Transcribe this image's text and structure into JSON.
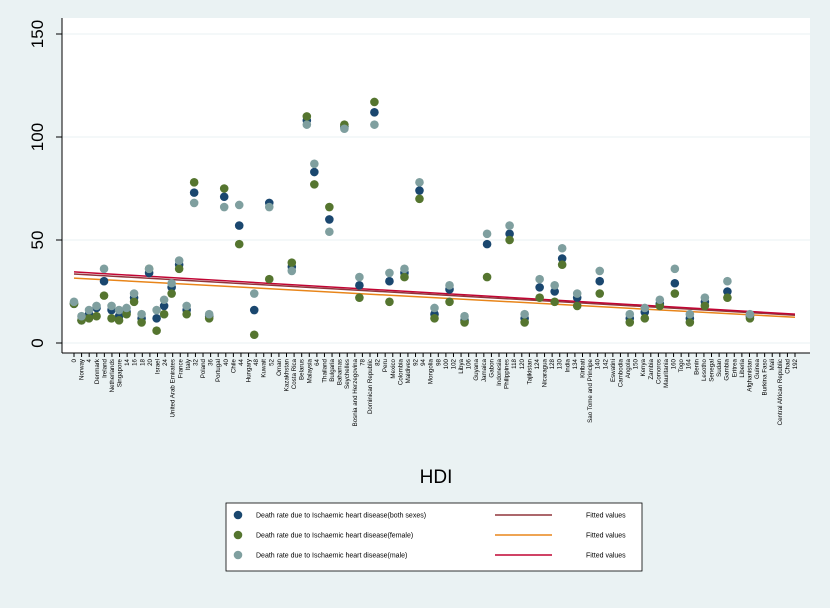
{
  "chart_data": {
    "type": "scatter",
    "xlabel": "HDI",
    "ylabel": "",
    "ylim": [
      0,
      150
    ],
    "y_ticks": [
      0,
      50,
      100,
      150
    ],
    "x_tick_labels": [
      "0",
      "Norway",
      "4",
      "Denmark",
      "Ireland",
      "Netherlands",
      "Singapore",
      "14",
      "16",
      "18",
      "20",
      "Israel",
      "24",
      "United Arab Emirates",
      "France",
      "Italy",
      "32",
      "Poland",
      "36",
      "Portugal",
      "40",
      "Chile",
      "44",
      "Hungary",
      "48",
      "Kuwait",
      "52",
      "Oman",
      "Kazakhstan",
      "Costa Rica",
      "Belarus",
      "Malaysia",
      "64",
      "Thailand",
      "Bulgaria",
      "Bahamas",
      "Seychelles",
      "Bosnia and Herzegovina",
      "78",
      "Dominican Republic",
      "82",
      "Peru",
      "Mexico",
      "Colombia",
      "Maldives",
      "92",
      "94",
      "Mongolia",
      "98",
      "100",
      "102",
      "Libya",
      "106",
      "Guyana",
      "Jamaica",
      "Gabon",
      "Indonesia",
      "Philippines",
      "118",
      "120",
      "Tajikistan",
      "124",
      "Nicaragua",
      "128",
      "130",
      "India",
      "134",
      "Kiribati",
      "Sao Tome and Principe",
      "140",
      "142",
      "Eswatini",
      "Cambodia",
      "Angola",
      "150",
      "Kenya",
      "Zambia",
      "Comoros",
      "Mauritania",
      "160",
      "Togo",
      "164",
      "Benin",
      "Lesotho",
      "Senegal",
      "Sudan",
      "Gambia",
      "Eritrea",
      "Liberia",
      "Afghanistan",
      "Guinea",
      "Burkina Faso",
      "Mali",
      "Central African Republic",
      "Chad",
      "192"
    ],
    "series": [
      {
        "name": "Death rate due to Ischaemic heart disease(both sexes)",
        "color": "#1a476f",
        "x": [
          0,
          2,
          4,
          6,
          8,
          10,
          12,
          14,
          16,
          18,
          20,
          22,
          24,
          26,
          28,
          30,
          32,
          36,
          40,
          44,
          48,
          52,
          58,
          62,
          64,
          68,
          72,
          76,
          80,
          84,
          88,
          92,
          96,
          100,
          104,
          110,
          116,
          120,
          124,
          128,
          130,
          134,
          140,
          148,
          152,
          156,
          160,
          164,
          168,
          174,
          180
        ],
        "values": [
          19,
          11,
          14,
          17,
          30,
          16,
          13,
          15,
          22,
          12,
          34,
          12,
          18,
          27,
          38,
          16,
          73,
          13,
          71,
          57,
          16,
          68,
          37,
          108,
          83,
          60,
          105,
          28,
          112,
          30,
          34,
          74,
          14,
          26,
          11,
          48,
          53,
          12,
          27,
          25,
          41,
          22,
          30,
          12,
          15,
          19,
          29,
          12,
          20,
          25,
          13
        ]
      },
      {
        "name": "Death rate due to Ischaemic heart disease(female)",
        "color": "#55752f",
        "x": [
          0,
          2,
          4,
          6,
          8,
          10,
          12,
          14,
          16,
          18,
          20,
          22,
          24,
          26,
          28,
          30,
          32,
          36,
          40,
          44,
          48,
          52,
          58,
          62,
          64,
          68,
          72,
          76,
          80,
          84,
          88,
          92,
          96,
          100,
          104,
          110,
          116,
          120,
          124,
          128,
          130,
          134,
          140,
          148,
          152,
          156,
          160,
          164,
          168,
          174,
          180
        ],
        "values": [
          19,
          11,
          12,
          13,
          23,
          12,
          11,
          14,
          20,
          10,
          36,
          6,
          14,
          24,
          36,
          14,
          78,
          12,
          75,
          48,
          4,
          31,
          39,
          110,
          77,
          66,
          106,
          22,
          117,
          20,
          32,
          70,
          12,
          20,
          10,
          32,
          50,
          10,
          22,
          20,
          38,
          18,
          24,
          10,
          12,
          18,
          24,
          10,
          18,
          22,
          12
        ]
      },
      {
        "name": "Death rate due to Ischaemic heart disease(male)",
        "color": "#7f9f9f",
        "x": [
          0,
          2,
          4,
          6,
          8,
          10,
          12,
          14,
          16,
          18,
          20,
          22,
          24,
          26,
          28,
          30,
          32,
          36,
          40,
          44,
          48,
          52,
          58,
          62,
          64,
          68,
          72,
          76,
          80,
          84,
          88,
          92,
          96,
          100,
          104,
          110,
          116,
          120,
          124,
          128,
          130,
          134,
          140,
          148,
          152,
          156,
          160,
          164,
          168,
          174,
          180
        ],
        "values": [
          20,
          13,
          16,
          18,
          36,
          18,
          16,
          17,
          24,
          14,
          36,
          16,
          21,
          29,
          40,
          18,
          68,
          14,
          66,
          67,
          24,
          66,
          35,
          106,
          87,
          54,
          104,
          32,
          106,
          34,
          36,
          78,
          17,
          28,
          13,
          53,
          57,
          14,
          31,
          28,
          46,
          24,
          35,
          14,
          17,
          21,
          36,
          14,
          22,
          30,
          14
        ]
      }
    ],
    "fitted_lines": [
      {
        "name": "Fitted values",
        "color": "#90353b",
        "x": [
          0,
          192
        ],
        "values": [
          33.5,
          13.5
        ]
      },
      {
        "name": "Fitted values",
        "color": "#e8851a",
        "x": [
          0,
          192
        ],
        "values": [
          31.5,
          12.5
        ]
      },
      {
        "name": "Fitted values",
        "color": "#c10534",
        "x": [
          0,
          192
        ],
        "values": [
          34.5,
          14
        ]
      }
    ],
    "legend": {
      "position": "bottom",
      "entries": [
        {
          "label": "Death rate due to Ischaemic heart disease(both sexes)",
          "fit_label": "Fitted values"
        },
        {
          "label": "Death rate due to Ischaemic heart disease(female)",
          "fit_label": "Fitted values"
        },
        {
          "label": "Death rate due to Ischaemic heart disease(male)",
          "fit_label": "Fitted values"
        }
      ]
    }
  }
}
